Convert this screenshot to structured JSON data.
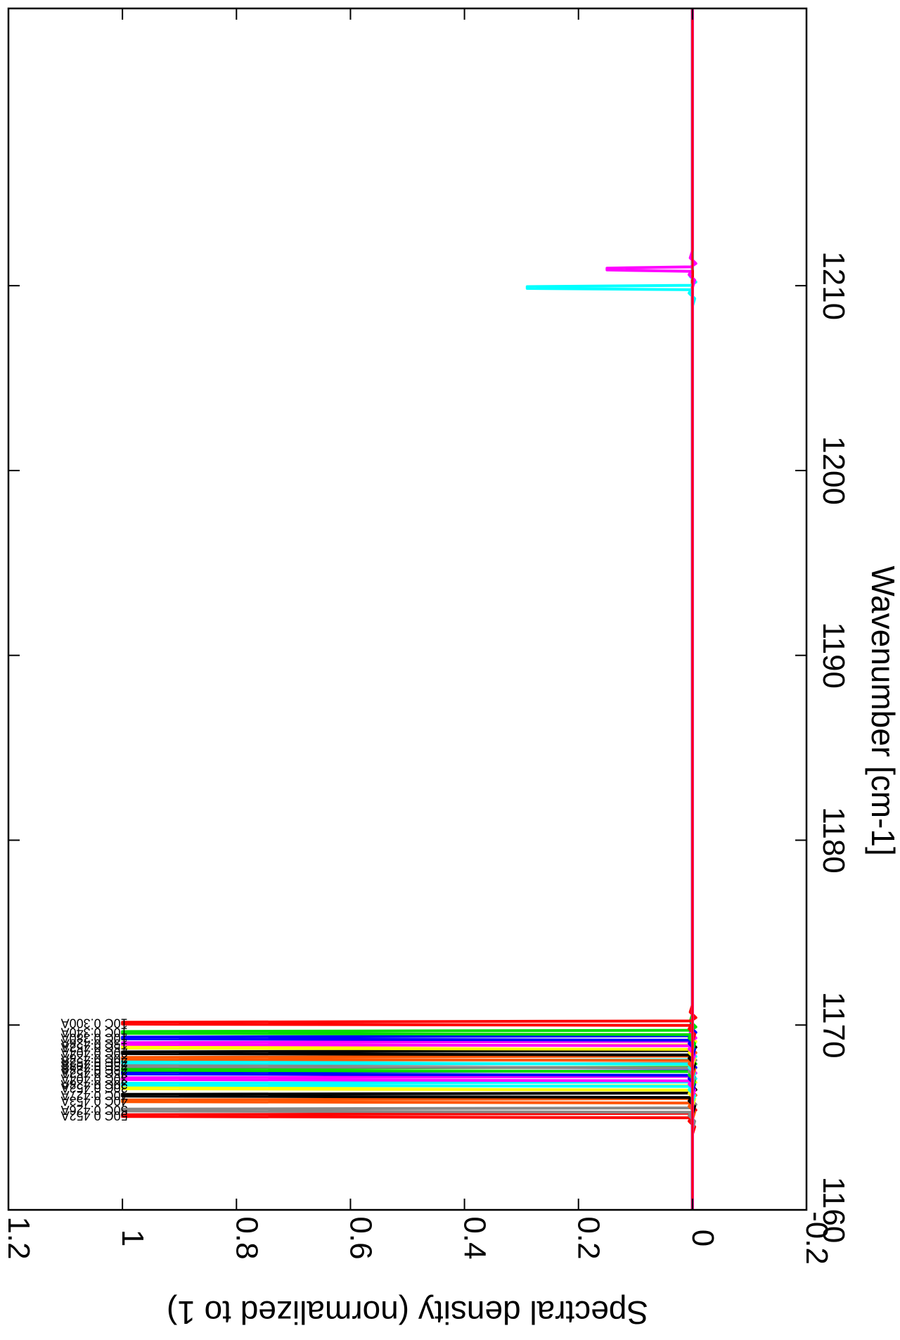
{
  "chart_data": {
    "type": "line",
    "orientation": "rotated-90-clockwise",
    "xlabel": "Wavenumber [cm-1]",
    "ylabel": "Spectral density (normalized to 1)",
    "xlim": [
      1160,
      1225
    ],
    "ylim": [
      -0.2,
      1.2
    ],
    "x_ticks": [
      "1160",
      "1170",
      "1180",
      "1190",
      "1200",
      "1210"
    ],
    "y_ticks": [
      "-0.2",
      "0",
      "0.2",
      "0.4",
      "0.6",
      "0.8",
      "1",
      "1.2"
    ],
    "grid": false,
    "legend": "labels beside peaks, top-left",
    "series": [
      {
        "name": "50C 0.452A",
        "color": "#ff0000",
        "peak_x": 1165.1,
        "peak_y": 1.0
      },
      {
        "name": "50C 0.426A",
        "color": "#888888",
        "peak_x": 1165.4,
        "peak_y": 1.0
      },
      {
        "name": "40C 0.453A",
        "color": "#ff5500",
        "peak_x": 1165.9,
        "peak_y": 1.0
      },
      {
        "name": "40C 0.427A",
        "color": "#000000",
        "peak_x": 1166.2,
        "peak_y": 1.0
      },
      {
        "name": "30C 0.452A",
        "color": "#ffff00",
        "peak_x": 1166.6,
        "peak_y": 1.0
      },
      {
        "name": "30C 0.428A",
        "color": "#00ffff",
        "peak_x": 1166.8,
        "peak_y": 1.0
      },
      {
        "name": "30C 0.404A",
        "color": "#ff00ff",
        "peak_x": 1167.1,
        "peak_y": 1.0
      },
      {
        "name": "25C 0.452A",
        "color": "#0000ff",
        "peak_x": 1167.4,
        "peak_y": 1.0
      },
      {
        "name": "25C 0.428A",
        "color": "#00dd00",
        "peak_x": 1167.6,
        "peak_y": 1.0
      },
      {
        "name": "25C 0.404A",
        "color": "#888888",
        "peak_x": 1167.8,
        "peak_y": 1.0
      },
      {
        "name": "20C 0.452A",
        "color": "#00ffff",
        "peak_x": 1168.0,
        "peak_y": 1.0
      },
      {
        "name": "20C 0.428A",
        "color": "#ff5500",
        "peak_x": 1168.2,
        "peak_y": 1.0
      },
      {
        "name": "20C 0.404A",
        "color": "#000000",
        "peak_x": 1168.5,
        "peak_y": 1.0
      },
      {
        "name": "15C 0.452A",
        "color": "#ffff00",
        "peak_x": 1168.8,
        "peak_y": 1.0
      },
      {
        "name": "15C 0.428A",
        "color": "#ff00ff",
        "peak_x": 1169.0,
        "peak_y": 1.0
      },
      {
        "name": "10C 0.380A",
        "color": "#0000ff",
        "peak_x": 1169.3,
        "peak_y": 1.0
      },
      {
        "name": "10C 0.340A",
        "color": "#00dd00",
        "peak_x": 1169.6,
        "peak_y": 1.0
      },
      {
        "name": "10C 0.300A",
        "color": "#ff0000",
        "peak_x": 1170.1,
        "peak_y": 1.0
      },
      {
        "name": "",
        "color": "#00ffff",
        "peak_x": 1209.9,
        "peak_y": 0.29
      },
      {
        "name": "",
        "color": "#ff00ff",
        "peak_x": 1210.9,
        "peak_y": 0.15
      }
    ]
  }
}
